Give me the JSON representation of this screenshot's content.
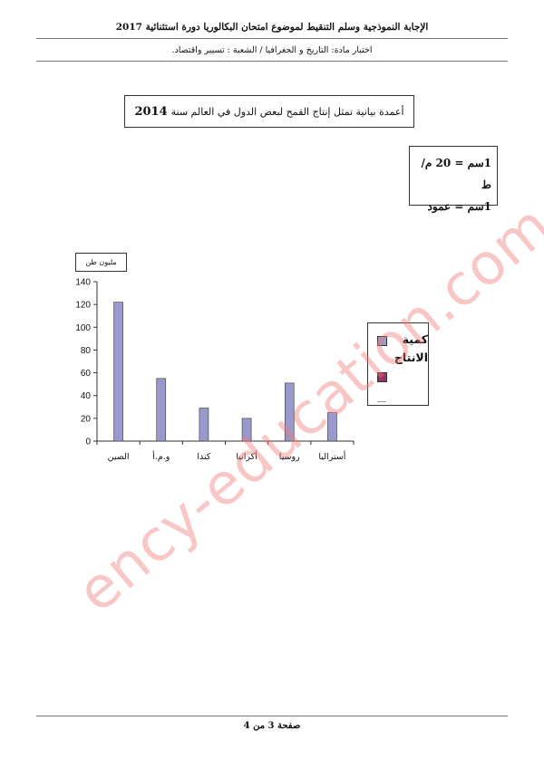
{
  "header": {
    "title": "الإجابة النموذجية وسلم التنقيط لموضوع امتحان البكالوريا دورة استثنائية 2017",
    "subtitle": "اختبار مادة: التاريخ و الجغرافيا    /    الشعبة : تسيير واقتصاد."
  },
  "title_box": {
    "text": "أعمدة بيانية تمثل إنتاج القمح لبعض الدول في العالم سنة",
    "year": "2014"
  },
  "scale_box": {
    "line1": "1سم = 20 م/ط",
    "line2": "1سم = عمود"
  },
  "unit_label": "مليون طن",
  "legend": {
    "label": "كمية الانتاج",
    "colors": [
      "#9999cc",
      "#993366"
    ]
  },
  "chart_data": {
    "type": "bar",
    "categories": [
      "الصين",
      "و.م.أ",
      "كندا",
      "أكرانيا",
      "روسيا",
      "أستراليا"
    ],
    "series": [
      {
        "name": "كمية الانتاج",
        "values": [
          122,
          55,
          29,
          20,
          51,
          25
        ]
      }
    ],
    "yticks": [
      0,
      20,
      40,
      60,
      80,
      100,
      120,
      140
    ],
    "ylim": [
      0,
      140
    ],
    "ylabel": "مليون طن",
    "colors": {
      "bar": "#9999cc",
      "bar_border": "#333333"
    },
    "grid": false,
    "legend_position": "right"
  },
  "footer": "صفحة  3 من 4",
  "watermark": "ency-education.com"
}
